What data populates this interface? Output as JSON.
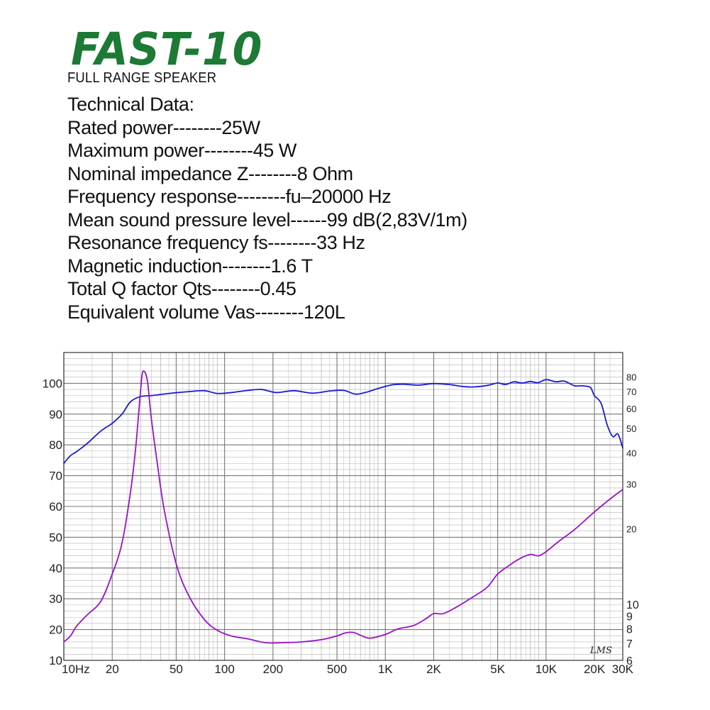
{
  "header": {
    "title": "FAST-10",
    "subtitle": "FULL RANGE SPEAKER",
    "title_color": "#1c7a35"
  },
  "specs": [
    "Technical Data:",
    "Rated power--------25W",
    "Maximum power--------45 W",
    "Nominal impedance Z--------8 Ohm",
    "Frequency response--------fu–20000 Hz",
    "Mean sound pressure level------99 dB(2,83V/1m)",
    "Resonance frequency fs--------33 Hz",
    "Magnetic induction--------1.6 T",
    "Total Q factor Qts--------0.45",
    "Equivalent volume Vas--------120L"
  ],
  "signature": "LMS",
  "chart_data": {
    "type": "line",
    "x_scale": "log",
    "xlim": [
      10,
      30000
    ],
    "ylim_left": [
      10,
      110
    ],
    "x_tick_labels": [
      {
        "value": 10,
        "label": "10Hz"
      },
      {
        "value": 20,
        "label": "20"
      },
      {
        "value": 50,
        "label": "50"
      },
      {
        "value": 100,
        "label": "100"
      },
      {
        "value": 200,
        "label": "200"
      },
      {
        "value": 500,
        "label": "500"
      },
      {
        "value": 1000,
        "label": "1K"
      },
      {
        "value": 2000,
        "label": "2K"
      },
      {
        "value": 5000,
        "label": "5K"
      },
      {
        "value": 10000,
        "label": "10K"
      },
      {
        "value": 20000,
        "label": "20K"
      },
      {
        "value": 30000,
        "label": "30K"
      }
    ],
    "y_left_ticks": [
      10,
      20,
      30,
      40,
      50,
      60,
      70,
      80,
      90,
      100
    ],
    "y_right_scale": "log",
    "ylim_right": [
      6,
      100
    ],
    "y_right_ticks": [
      {
        "value": 6,
        "label": "6"
      },
      {
        "value": 7,
        "label": "7"
      },
      {
        "value": 8,
        "label": "8"
      },
      {
        "value": 9,
        "label": "9"
      },
      {
        "value": 10,
        "label": "10"
      },
      {
        "value": 20,
        "label": "20"
      },
      {
        "value": 30,
        "label": "30"
      },
      {
        "value": 40,
        "label": "40"
      },
      {
        "value": 50,
        "label": "50"
      },
      {
        "value": 60,
        "label": "60"
      },
      {
        "value": 70,
        "label": "70"
      },
      {
        "value": 80,
        "label": "80"
      }
    ],
    "grid": true,
    "series": [
      {
        "axis": "left",
        "color": "#1a1ad6",
        "x": [
          10,
          11,
          12,
          14,
          17,
          20,
          23,
          26,
          30,
          35,
          45,
          60,
          75,
          90,
          110,
          140,
          170,
          210,
          270,
          350,
          450,
          550,
          650,
          750,
          900,
          1100,
          1300,
          1600,
          2000,
          2500,
          3000,
          3500,
          4300,
          5000,
          5600,
          6300,
          7100,
          8000,
          8900,
          10000,
          11500,
          13000,
          15000,
          16500,
          18000,
          19000,
          20000,
          22000,
          24000,
          26000,
          28000,
          30000
        ],
        "y": [
          74,
          76.5,
          77.8,
          80.5,
          84.5,
          87,
          90,
          94,
          95.7,
          96,
          96.7,
          97.3,
          97.6,
          96.7,
          97,
          97.7,
          98,
          97,
          97.6,
          96.8,
          97.5,
          97.7,
          96.5,
          97,
          98.3,
          99.5,
          99.7,
          99.4,
          99.9,
          99.6,
          99,
          98.8,
          99.3,
          100.1,
          99.6,
          100.5,
          100.1,
          100.6,
          100.2,
          101.2,
          100.5,
          100.7,
          99.2,
          99.2,
          99,
          98.5,
          96,
          93.5,
          86.5,
          82.7,
          83.5,
          79
        ]
      },
      {
        "axis": "right",
        "color": "#9a12c8",
        "x": [
          10,
          11,
          12,
          14,
          17,
          20,
          23,
          26,
          28,
          30,
          31,
          33,
          35,
          38,
          42,
          50,
          60,
          75,
          90,
          110,
          140,
          180,
          230,
          300,
          400,
          500,
          560,
          630,
          700,
          800,
          1000,
          1200,
          1500,
          1800,
          2000,
          2300,
          2800,
          3500,
          4300,
          5000,
          6000,
          7000,
          8000,
          9000,
          10000,
          12000,
          15000,
          20000,
          25000,
          30000
        ],
        "y": [
          7.1,
          7.5,
          8.2,
          9.1,
          10.3,
          13.2,
          17.5,
          28,
          42,
          70,
          84,
          78,
          55,
          37,
          24,
          14.5,
          10.8,
          8.7,
          7.9,
          7.5,
          7.3,
          7.05,
          7.05,
          7.1,
          7.25,
          7.5,
          7.7,
          7.75,
          7.55,
          7.35,
          7.6,
          8.0,
          8.25,
          8.8,
          9.2,
          9.2,
          9.8,
          10.7,
          11.7,
          13.2,
          14.4,
          15.3,
          15.8,
          15.6,
          16.2,
          17.8,
          19.8,
          23.3,
          26.2,
          28.6
        ]
      }
    ]
  }
}
